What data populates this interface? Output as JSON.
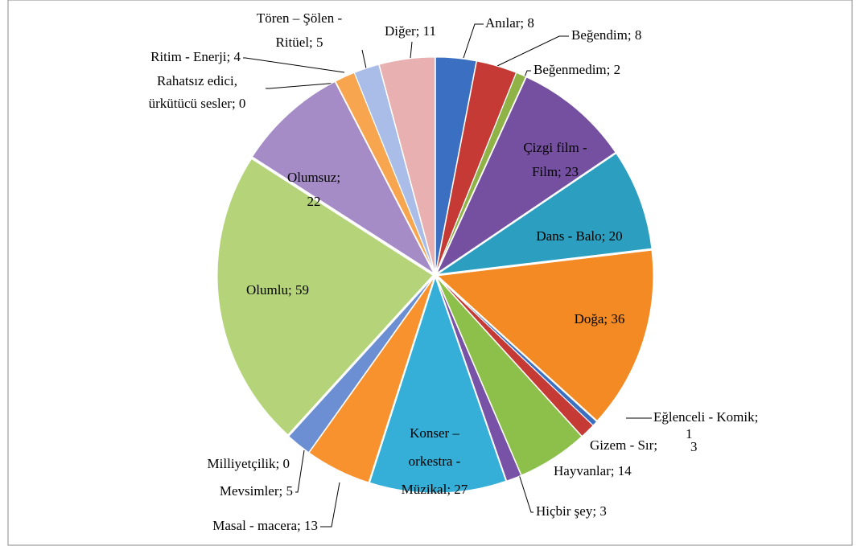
{
  "chart_data": {
    "type": "pie",
    "categories": [
      "Anılar",
      "Beğendim",
      "Beğenmedim",
      "Çizgi film - Film",
      "Dans  - Balo",
      "Doğa",
      "Eğlenceli - Komik",
      "Gizem - Sır",
      "Hayvanlar",
      "Hiçbir şey",
      "Konser – orkestra - Müzikal",
      "Masal - macera",
      "Mevsimler",
      "Milliyetçilik",
      "Olumlu",
      "Olumsuz",
      "Rahatsız edici, ürkütücü sesler",
      "Ritim - Enerji",
      "Tören – Şölen - Ritüel",
      "Diğer"
    ],
    "values": [
      8,
      8,
      2,
      23,
      20,
      36,
      1,
      3,
      14,
      3,
      27,
      13,
      5,
      0,
      59,
      22,
      0,
      4,
      5,
      11
    ],
    "value_labels": [
      "Anılar; 8",
      "Beğendim; 8",
      "Beğenmedim; 2",
      "Çizgi film -\nFilm; 23",
      "Dans  - Balo; 20",
      "Doğa; 36",
      "Eğlenceli - Komik;\n1",
      "Gizem - Sır;\n3",
      "Hayvanlar; 14",
      "Hiçbir şey; 3",
      "Konser –\norkestra -\nMüzikal; 27",
      "Masal - macera; 13",
      "Mevsimler; 5",
      "Milliyetçilik; 0",
      "Olumlu; 59",
      "Olumsuz;\n22",
      "Rahatsız edici,\nürkütücü sesler; 0",
      "Ritim - Enerji; 4",
      "Tören – Şölen -\nRitüel; 5",
      "Diğer; 11"
    ],
    "colors": [
      "#3b6fc2",
      "#c63a36",
      "#8fb347",
      "#7550a0",
      "#2c9fc0",
      "#f38a24",
      "#3b6fc2",
      "#c63a36",
      "#8dc04a",
      "#7752a6",
      "#35afd8",
      "#f7922e",
      "#6b8fd2",
      "#d46a66",
      "#b5d47a",
      "#a58cc6",
      "#7fcde0",
      "#f8a54f",
      "#a9bde8",
      "#e8b0b0"
    ]
  }
}
